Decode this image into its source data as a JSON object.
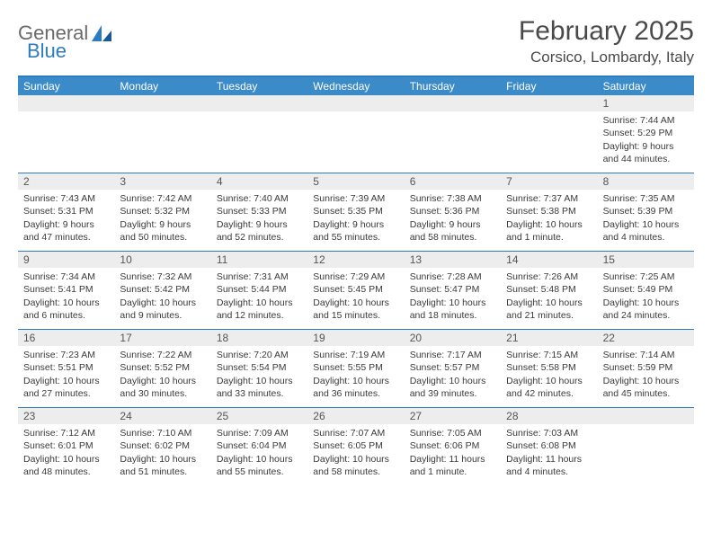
{
  "logo": {
    "text1": "General",
    "text2": "Blue"
  },
  "title": "February 2025",
  "location": "Corsico, Lombardy, Italy",
  "colors": {
    "header_bg": "#3b8bc9",
    "border": "#2e7cc0",
    "daynum_bg": "#ededed",
    "text": "#3a3a3a",
    "title_text": "#4a4a4a",
    "logo_gray": "#6a6a6a",
    "logo_blue": "#2e7cc0"
  },
  "day_names": [
    "Sunday",
    "Monday",
    "Tuesday",
    "Wednesday",
    "Thursday",
    "Friday",
    "Saturday"
  ],
  "weeks": [
    [
      {
        "empty": true
      },
      {
        "empty": true
      },
      {
        "empty": true
      },
      {
        "empty": true
      },
      {
        "empty": true
      },
      {
        "empty": true
      },
      {
        "n": "1",
        "sunrise": "Sunrise: 7:44 AM",
        "sunset": "Sunset: 5:29 PM",
        "daylight": "Daylight: 9 hours and 44 minutes."
      }
    ],
    [
      {
        "n": "2",
        "sunrise": "Sunrise: 7:43 AM",
        "sunset": "Sunset: 5:31 PM",
        "daylight": "Daylight: 9 hours and 47 minutes."
      },
      {
        "n": "3",
        "sunrise": "Sunrise: 7:42 AM",
        "sunset": "Sunset: 5:32 PM",
        "daylight": "Daylight: 9 hours and 50 minutes."
      },
      {
        "n": "4",
        "sunrise": "Sunrise: 7:40 AM",
        "sunset": "Sunset: 5:33 PM",
        "daylight": "Daylight: 9 hours and 52 minutes."
      },
      {
        "n": "5",
        "sunrise": "Sunrise: 7:39 AM",
        "sunset": "Sunset: 5:35 PM",
        "daylight": "Daylight: 9 hours and 55 minutes."
      },
      {
        "n": "6",
        "sunrise": "Sunrise: 7:38 AM",
        "sunset": "Sunset: 5:36 PM",
        "daylight": "Daylight: 9 hours and 58 minutes."
      },
      {
        "n": "7",
        "sunrise": "Sunrise: 7:37 AM",
        "sunset": "Sunset: 5:38 PM",
        "daylight": "Daylight: 10 hours and 1 minute."
      },
      {
        "n": "8",
        "sunrise": "Sunrise: 7:35 AM",
        "sunset": "Sunset: 5:39 PM",
        "daylight": "Daylight: 10 hours and 4 minutes."
      }
    ],
    [
      {
        "n": "9",
        "sunrise": "Sunrise: 7:34 AM",
        "sunset": "Sunset: 5:41 PM",
        "daylight": "Daylight: 10 hours and 6 minutes."
      },
      {
        "n": "10",
        "sunrise": "Sunrise: 7:32 AM",
        "sunset": "Sunset: 5:42 PM",
        "daylight": "Daylight: 10 hours and 9 minutes."
      },
      {
        "n": "11",
        "sunrise": "Sunrise: 7:31 AM",
        "sunset": "Sunset: 5:44 PM",
        "daylight": "Daylight: 10 hours and 12 minutes."
      },
      {
        "n": "12",
        "sunrise": "Sunrise: 7:29 AM",
        "sunset": "Sunset: 5:45 PM",
        "daylight": "Daylight: 10 hours and 15 minutes."
      },
      {
        "n": "13",
        "sunrise": "Sunrise: 7:28 AM",
        "sunset": "Sunset: 5:47 PM",
        "daylight": "Daylight: 10 hours and 18 minutes."
      },
      {
        "n": "14",
        "sunrise": "Sunrise: 7:26 AM",
        "sunset": "Sunset: 5:48 PM",
        "daylight": "Daylight: 10 hours and 21 minutes."
      },
      {
        "n": "15",
        "sunrise": "Sunrise: 7:25 AM",
        "sunset": "Sunset: 5:49 PM",
        "daylight": "Daylight: 10 hours and 24 minutes."
      }
    ],
    [
      {
        "n": "16",
        "sunrise": "Sunrise: 7:23 AM",
        "sunset": "Sunset: 5:51 PM",
        "daylight": "Daylight: 10 hours and 27 minutes."
      },
      {
        "n": "17",
        "sunrise": "Sunrise: 7:22 AM",
        "sunset": "Sunset: 5:52 PM",
        "daylight": "Daylight: 10 hours and 30 minutes."
      },
      {
        "n": "18",
        "sunrise": "Sunrise: 7:20 AM",
        "sunset": "Sunset: 5:54 PM",
        "daylight": "Daylight: 10 hours and 33 minutes."
      },
      {
        "n": "19",
        "sunrise": "Sunrise: 7:19 AM",
        "sunset": "Sunset: 5:55 PM",
        "daylight": "Daylight: 10 hours and 36 minutes."
      },
      {
        "n": "20",
        "sunrise": "Sunrise: 7:17 AM",
        "sunset": "Sunset: 5:57 PM",
        "daylight": "Daylight: 10 hours and 39 minutes."
      },
      {
        "n": "21",
        "sunrise": "Sunrise: 7:15 AM",
        "sunset": "Sunset: 5:58 PM",
        "daylight": "Daylight: 10 hours and 42 minutes."
      },
      {
        "n": "22",
        "sunrise": "Sunrise: 7:14 AM",
        "sunset": "Sunset: 5:59 PM",
        "daylight": "Daylight: 10 hours and 45 minutes."
      }
    ],
    [
      {
        "n": "23",
        "sunrise": "Sunrise: 7:12 AM",
        "sunset": "Sunset: 6:01 PM",
        "daylight": "Daylight: 10 hours and 48 minutes."
      },
      {
        "n": "24",
        "sunrise": "Sunrise: 7:10 AM",
        "sunset": "Sunset: 6:02 PM",
        "daylight": "Daylight: 10 hours and 51 minutes."
      },
      {
        "n": "25",
        "sunrise": "Sunrise: 7:09 AM",
        "sunset": "Sunset: 6:04 PM",
        "daylight": "Daylight: 10 hours and 55 minutes."
      },
      {
        "n": "26",
        "sunrise": "Sunrise: 7:07 AM",
        "sunset": "Sunset: 6:05 PM",
        "daylight": "Daylight: 10 hours and 58 minutes."
      },
      {
        "n": "27",
        "sunrise": "Sunrise: 7:05 AM",
        "sunset": "Sunset: 6:06 PM",
        "daylight": "Daylight: 11 hours and 1 minute."
      },
      {
        "n": "28",
        "sunrise": "Sunrise: 7:03 AM",
        "sunset": "Sunset: 6:08 PM",
        "daylight": "Daylight: 11 hours and 4 minutes."
      },
      {
        "empty": true
      }
    ]
  ]
}
